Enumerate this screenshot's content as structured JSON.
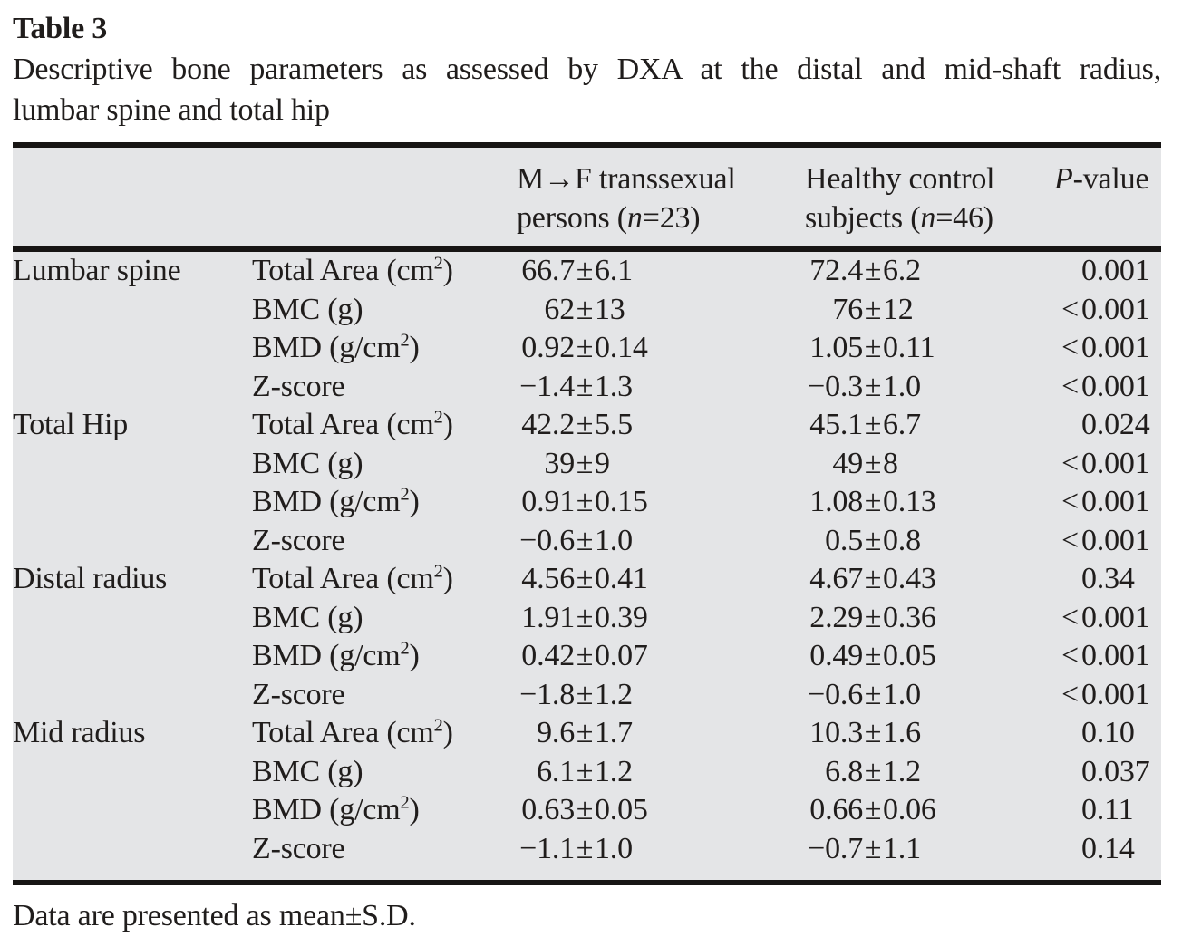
{
  "title": "Table 3",
  "caption_line1": "Descriptive bone parameters as assessed by DXA at the distal and mid-shaft radius,",
  "caption_line2": "lumbar spine and total hip",
  "pm_symbol": "±",
  "header": {
    "group1": {
      "line1": "M→F transsexual",
      "line2_pre": "persons (",
      "n": "n",
      "line2_post": "=23)"
    },
    "group2": {
      "line1": "Healthy control",
      "line2_pre": "subjects (",
      "n": "n",
      "line2_post": "=46)"
    },
    "pvalue": {
      "italic": "P",
      "rest": "-value"
    }
  },
  "table": {
    "rows": [
      {
        "section": "Lumbar spine",
        "param": "Total Area (cm²)",
        "g1": "66.7±6.1",
        "g2": "72.4±6.2",
        "p": "0.001"
      },
      {
        "section": "",
        "param": "BMC (g)",
        "g1": "62±13",
        "g2": "76±12",
        "p": "<0.001"
      },
      {
        "section": "",
        "param": "BMD (g/cm²)",
        "g1": "0.92±0.14",
        "g2": "1.05±0.11",
        "p": "<0.001"
      },
      {
        "section": "",
        "param": "Z-score",
        "g1": "−1.4±1.3",
        "g2": "−0.3±1.0",
        "p": "<0.001"
      },
      {
        "section": "Total Hip",
        "param": "Total Area (cm²)",
        "g1": "42.2±5.5",
        "g2": "45.1±6.7",
        "p": "0.024"
      },
      {
        "section": "",
        "param": "BMC (g)",
        "g1": "39±9",
        "g2": "49±8",
        "p": "<0.001"
      },
      {
        "section": "",
        "param": "BMD (g/cm²)",
        "g1": "0.91±0.15",
        "g2": "1.08±0.13",
        "p": "<0.001"
      },
      {
        "section": "",
        "param": "Z-score",
        "g1": "−0.6±1.0",
        "g2": "0.5±0.8",
        "p": "<0.001"
      },
      {
        "section": "Distal radius",
        "param": "Total Area (cm²)",
        "g1": "4.56±0.41",
        "g2": "4.67±0.43",
        "p": "0.34"
      },
      {
        "section": "",
        "param": "BMC (g)",
        "g1": "1.91±0.39",
        "g2": "2.29±0.36",
        "p": "<0.001"
      },
      {
        "section": "",
        "param": "BMD (g/cm²)",
        "g1": "0.42±0.07",
        "g2": "0.49±0.05",
        "p": "<0.001"
      },
      {
        "section": "",
        "param": "Z-score",
        "g1": "−1.8±1.2",
        "g2": "−0.6±1.0",
        "p": "<0.001"
      },
      {
        "section": "Mid radius",
        "param": "Total Area (cm²)",
        "g1": "9.6±1.7",
        "g2": "10.3±1.6",
        "p": "0.10"
      },
      {
        "section": "",
        "param": "BMC (g)",
        "g1": "6.1±1.2",
        "g2": "6.8±1.2",
        "p": "0.037"
      },
      {
        "section": "",
        "param": "BMD (g/cm²)",
        "g1": "0.63±0.05",
        "g2": "0.66±0.06",
        "p": "0.11"
      },
      {
        "section": "",
        "param": "Z-score",
        "g1": "−1.1±1.0",
        "g2": "−0.7±1.1",
        "p": "0.14"
      }
    ]
  },
  "footnote": "Data are presented as mean±S.D.",
  "colors": {
    "table_background": "#e4e5e7",
    "rule": "#171514",
    "text": "#201d1c"
  }
}
